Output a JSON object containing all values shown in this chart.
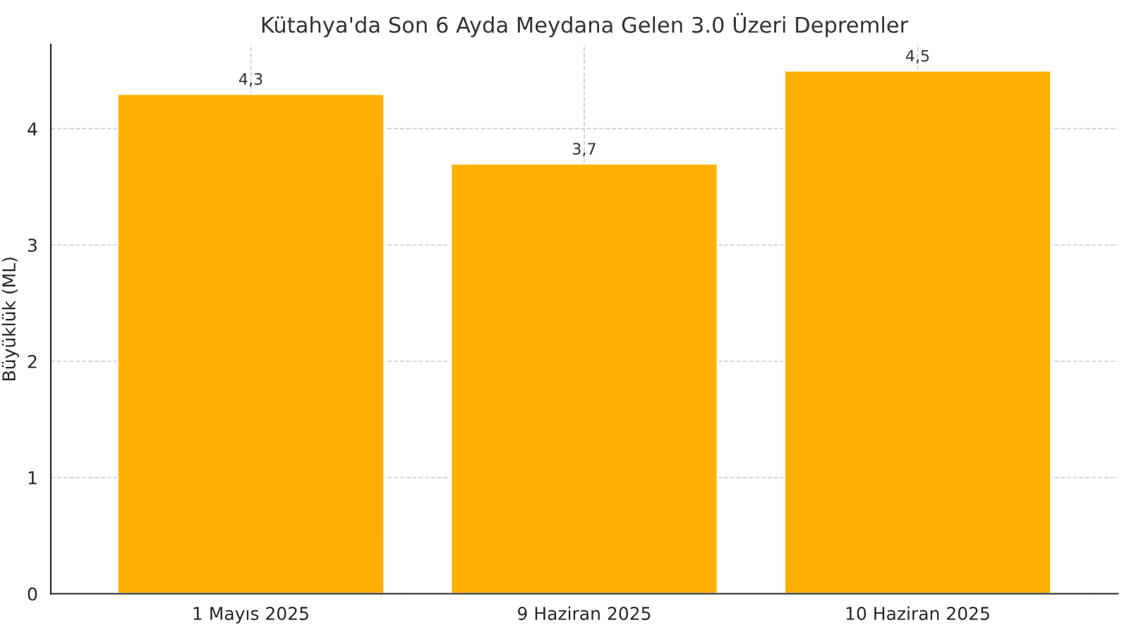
{
  "chart_data": {
    "type": "bar",
    "title": "Kütahya'da Son 6 Ayda Meydana Gelen 3.0 Üzeri Depremler",
    "ylabel": "Büyüklük (ML)",
    "categories": [
      "1 Mayıs 2025",
      "9 Haziran 2025",
      "10 Haziran 2025"
    ],
    "values": [
      4.3,
      3.7,
      4.5
    ],
    "color": "#ffb000",
    "value_labels": [
      "4,3",
      "3,7",
      "4,5"
    ],
    "ylim": [
      0,
      4.725
    ],
    "yticks": [
      0,
      1,
      2,
      3,
      4
    ],
    "grid": true
  }
}
